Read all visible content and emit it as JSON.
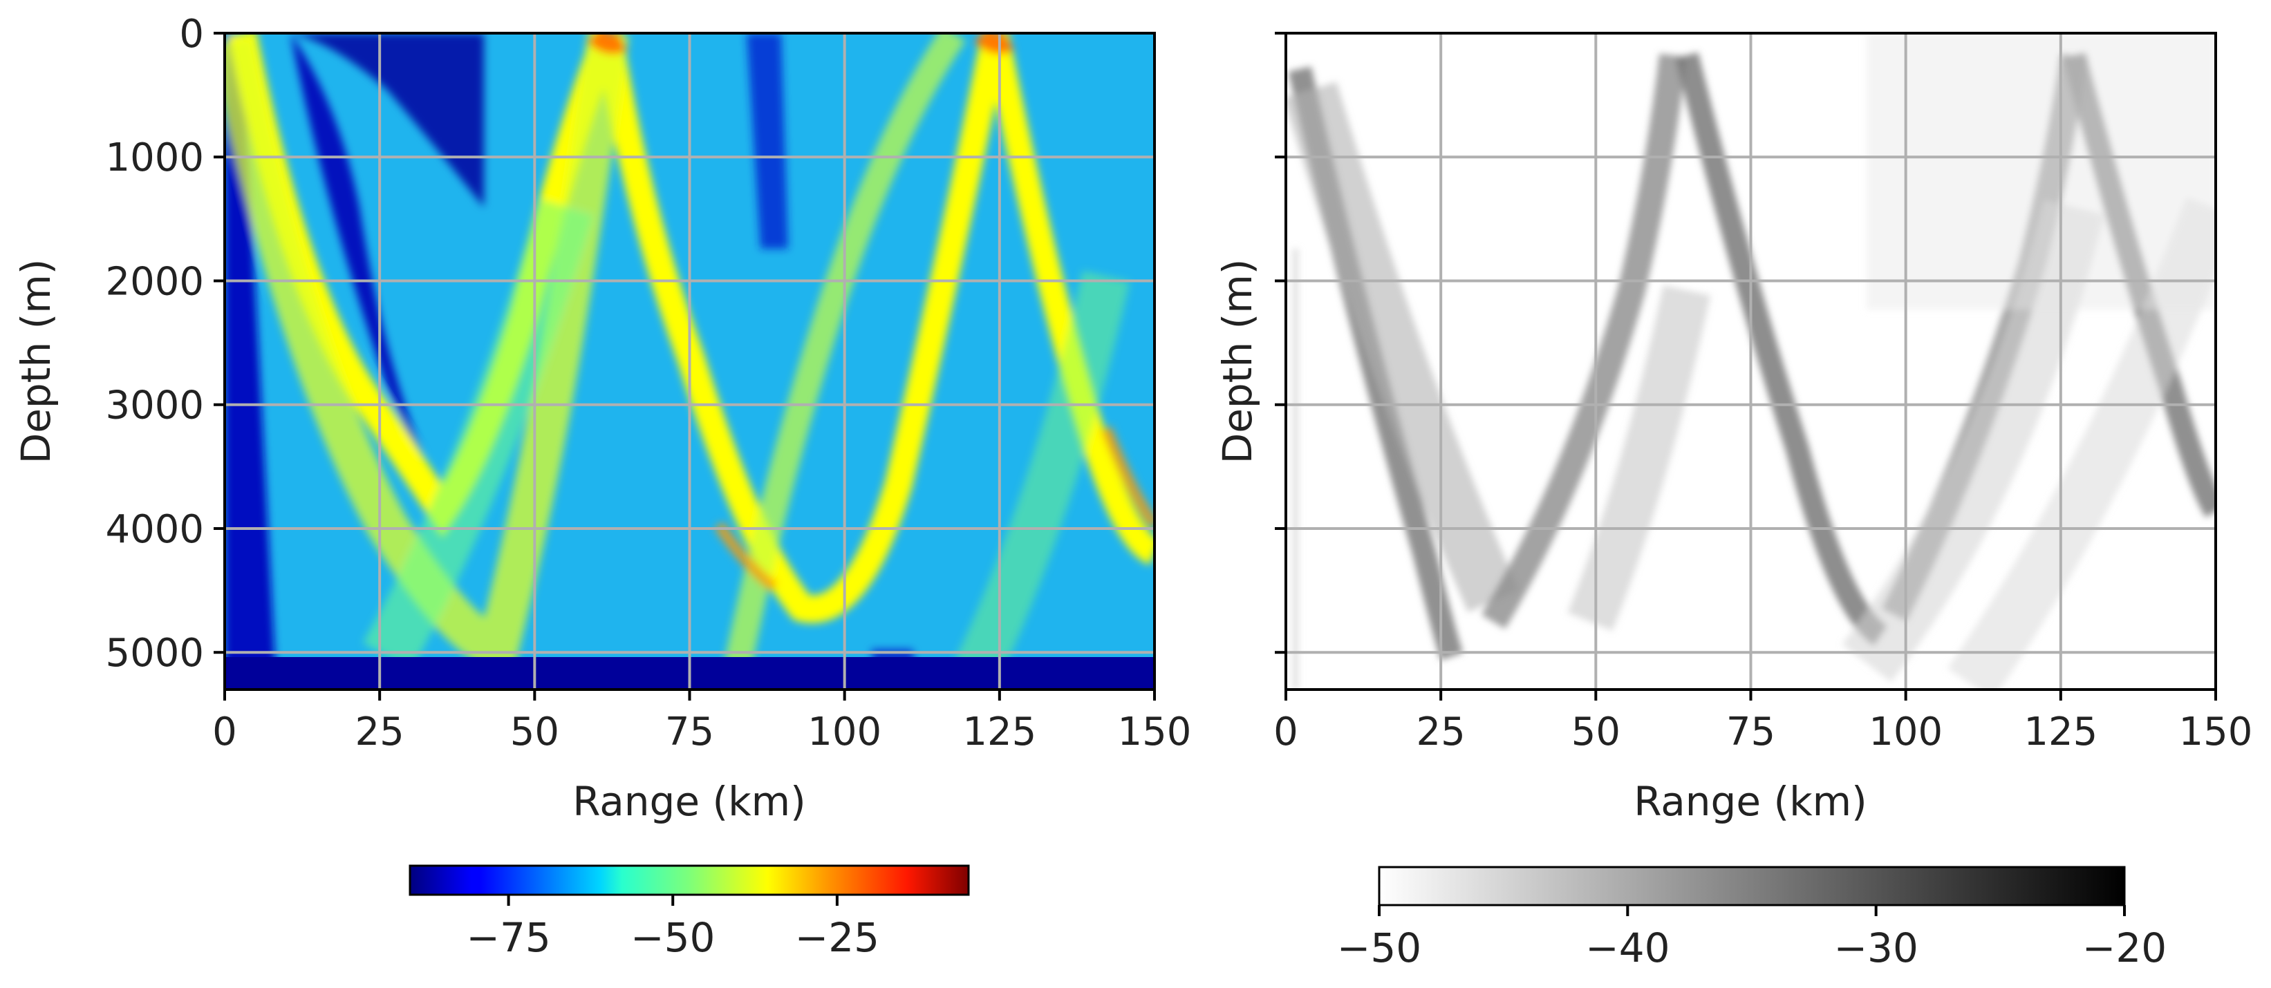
{
  "chart_data": [
    {
      "type": "heatmap",
      "xlabel": "Range (km)",
      "ylabel": "Depth (m)",
      "xlim": [
        0,
        150
      ],
      "ylim": [
        5300,
        0
      ],
      "xticks": [
        0,
        25,
        50,
        75,
        100,
        125,
        150
      ],
      "yticks": [
        0,
        1000,
        2000,
        3000,
        4000,
        5000
      ],
      "grid": true,
      "colormap": "jet",
      "bottom_depth_m": 5000,
      "colorbar": {
        "orientation": "horizontal",
        "placement": "below",
        "vmin": -90,
        "vmax": -5,
        "ticks": [
          -75,
          -50,
          -25
        ],
        "tick_labels": [
          "−75",
          "−50",
          "−25"
        ]
      }
    },
    {
      "type": "heatmap",
      "xlabel": "Range (km)",
      "ylabel": "Depth (m)",
      "xlim": [
        0,
        150
      ],
      "ylim": [
        5300,
        0
      ],
      "xticks": [
        0,
        25,
        50,
        75,
        100,
        125,
        150
      ],
      "yticks": [
        0,
        1000,
        2000,
        3000,
        4000,
        5000
      ],
      "y_tick_labels_shown": false,
      "grid": true,
      "colormap": "gray_r",
      "colorbar": {
        "orientation": "horizontal",
        "placement": "below",
        "vmin": -50,
        "vmax": -20,
        "ticks": [
          -50,
          -40,
          -30,
          -20
        ],
        "tick_labels": [
          "−50",
          "−40",
          "−30",
          "−20"
        ]
      }
    }
  ]
}
